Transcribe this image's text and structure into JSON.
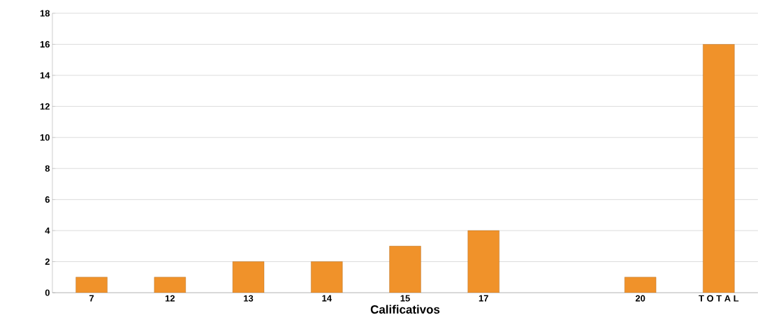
{
  "chart_data": {
    "type": "bar",
    "xlabel": "Calificativos",
    "categories": [
      "7",
      "12",
      "13",
      "14",
      "15",
      "17",
      null,
      "20",
      "T O T A L"
    ],
    "values": [
      1,
      1,
      2,
      2,
      3,
      4,
      null,
      1,
      16
    ],
    "color": "#f0922a",
    "ylim": [
      0,
      18
    ],
    "yticks": [
      0,
      2,
      4,
      6,
      8,
      10,
      12,
      14,
      16,
      18
    ],
    "grid": "y"
  }
}
